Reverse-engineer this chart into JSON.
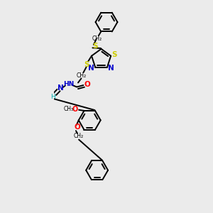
{
  "bg_color": "#ebebeb",
  "line_color": "#000000",
  "S_color": "#cccc00",
  "N_color": "#0000cc",
  "O_color": "#ff0000",
  "H_color": "#00aaaa",
  "bond_lw": 1.4,
  "figsize": [
    3.0,
    3.0
  ],
  "dpi": 100,
  "xlim": [
    0.5,
    5.5
  ],
  "ylim": [
    0.3,
    10.3
  ]
}
